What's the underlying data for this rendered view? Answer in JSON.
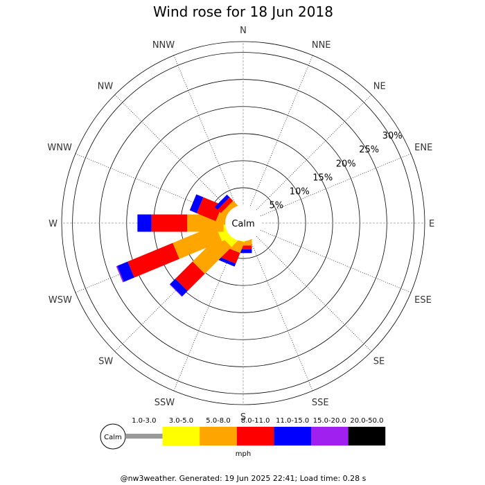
{
  "title": "Wind rose for 18 Jun 2018",
  "footer": "@nw3weather. Generated: 19 Jun 2025 22:41; Load time: 0.28 s",
  "calm_label": "Calm",
  "unit_label": "mph",
  "directions": [
    "N",
    "NNE",
    "NE",
    "ENE",
    "E",
    "ESE",
    "SE",
    "SSE",
    "S",
    "SSW",
    "SW",
    "WSW",
    "W",
    "WNW",
    "NW",
    "NNW"
  ],
  "radial_ticks": [
    "5%",
    "10%",
    "15%",
    "20%",
    "25%",
    "30%"
  ],
  "chart_data": {
    "type": "wind-rose",
    "title": "Wind rose for 18 Jun 2018",
    "unit": "mph",
    "rmax_percent": 32,
    "radial_ticks_percent": [
      5,
      10,
      15,
      20,
      25,
      30
    ],
    "speed_bins": [
      {
        "label": "1.0-3.0",
        "color": "#999999"
      },
      {
        "label": "3.0-5.0",
        "color": "#ffff00"
      },
      {
        "label": "5.0-8.0",
        "color": "#ffa500"
      },
      {
        "label": "8.0-11.0",
        "color": "#ff0000"
      },
      {
        "label": "11.0-15.0",
        "color": "#0000ff"
      },
      {
        "label": "15.0-20.0",
        "color": "#a020f0"
      },
      {
        "label": "20.0-50.0",
        "color": "#000000"
      }
    ],
    "series": [
      {
        "direction": "N",
        "values": [
          0.2,
          0.0,
          0.0,
          0.0,
          0.3,
          0.0,
          0.0
        ]
      },
      {
        "direction": "NNE",
        "values": [
          0.2,
          0.0,
          0.0,
          0.0,
          0.0,
          0.0,
          0.0
        ]
      },
      {
        "direction": "NE",
        "values": [
          0.0,
          0.0,
          0.0,
          0.0,
          0.0,
          0.0,
          0.0
        ]
      },
      {
        "direction": "ENE",
        "values": [
          0.0,
          0.0,
          0.0,
          0.0,
          0.0,
          0.0,
          0.0
        ]
      },
      {
        "direction": "E",
        "values": [
          0.0,
          0.0,
          0.0,
          0.0,
          0.0,
          0.0,
          0.0
        ]
      },
      {
        "direction": "ESE",
        "values": [
          0.3,
          0.3,
          0.3,
          0.2,
          0.0,
          0.0,
          0.0
        ]
      },
      {
        "direction": "SE",
        "values": [
          0.0,
          0.0,
          0.0,
          0.0,
          0.0,
          0.0,
          0.0
        ]
      },
      {
        "direction": "SSE",
        "values": [
          0.0,
          0.0,
          0.0,
          0.0,
          0.0,
          0.0,
          0.0
        ]
      },
      {
        "direction": "S",
        "values": [
          0.4,
          0.6,
          1.6,
          0.7,
          0.7,
          0.0,
          0.0
        ]
      },
      {
        "direction": "SSW",
        "values": [
          0.3,
          1.4,
          2.1,
          2.1,
          0.6,
          0.0,
          0.0
        ]
      },
      {
        "direction": "SW",
        "values": [
          0.5,
          2.6,
          7.0,
          4.5,
          1.4,
          0.1,
          0.0
        ]
      },
      {
        "direction": "WSW",
        "values": [
          0.5,
          2.9,
          8.5,
          9.0,
          2.1,
          0.2,
          0.0
        ]
      },
      {
        "direction": "W",
        "values": [
          0.4,
          1.7,
          6.7,
          6.6,
          2.6,
          0.0,
          0.0
        ]
      },
      {
        "direction": "WNW",
        "values": [
          0.4,
          0.6,
          2.3,
          3.8,
          1.4,
          0.0,
          0.0
        ]
      },
      {
        "direction": "NW",
        "values": [
          0.3,
          0.9,
          1.5,
          0.9,
          0.7,
          0.0,
          0.0
        ]
      },
      {
        "direction": "NNW",
        "values": [
          0.2,
          0.2,
          0.3,
          0.0,
          0.0,
          0.0,
          0.0
        ]
      }
    ]
  }
}
